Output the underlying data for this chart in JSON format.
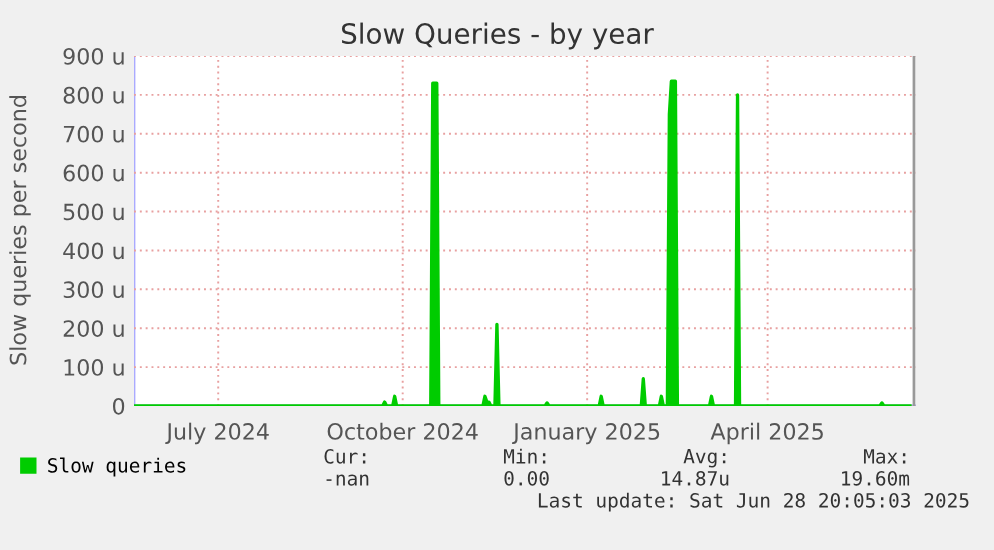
{
  "chart_data": {
    "type": "area",
    "title": "Slow Queries - by year",
    "ylabel": "Slow queries per second",
    "x": [
      "2024-06-04",
      "2024-10-06",
      "2024-10-07",
      "2024-10-08",
      "2024-10-11",
      "2024-10-12",
      "2024-10-13",
      "2024-10-30",
      "2024-10-31",
      "2024-11-02",
      "2024-11-03",
      "2024-11-25",
      "2024-11-26",
      "2024-11-27",
      "2024-11-28",
      "2024-11-29",
      "2024-12-01",
      "2024-12-02",
      "2024-12-03",
      "2024-12-26",
      "2024-12-27",
      "2024-12-28",
      "2025-01-22",
      "2025-01-23",
      "2025-01-24",
      "2025-02-12",
      "2025-02-13",
      "2025-02-14",
      "2025-02-21",
      "2025-02-22",
      "2025-02-23",
      "2025-02-25",
      "2025-02-26",
      "2025-02-27",
      "2025-03-01",
      "2025-03-02",
      "2025-03-18",
      "2025-03-19",
      "2025-03-20",
      "2025-03-31",
      "2025-04-01",
      "2025-04-02",
      "2025-06-11",
      "2025-06-12",
      "2025-06-13",
      "2025-06-26"
    ],
    "series": [
      {
        "name": "Slow queries",
        "color": "#00cc00",
        "values": [
          0,
          0,
          10,
          0,
          0,
          25,
          0,
          0,
          830,
          830,
          0,
          0,
          25,
          10,
          10,
          0,
          0,
          210,
          0,
          0,
          8,
          0,
          0,
          25,
          0,
          0,
          70,
          0,
          0,
          25,
          0,
          0,
          750,
          835,
          835,
          0,
          0,
          25,
          0,
          0,
          800,
          0,
          0,
          8,
          0,
          0
        ]
      }
    ],
    "xlim": [
      "2024-06-04",
      "2025-06-29"
    ],
    "xticks": [
      {
        "value": "2024-07-16",
        "label": "July 2024"
      },
      {
        "value": "2024-10-16",
        "label": "October 2024"
      },
      {
        "value": "2025-01-16",
        "label": "January 2025"
      },
      {
        "value": "2025-04-16",
        "label": "April 2025"
      }
    ],
    "ylim": [
      0,
      900
    ],
    "yticks": [
      0,
      {
        "value": 100,
        "label": "100 u"
      },
      {
        "value": 200,
        "label": "200 u"
      },
      {
        "value": 300,
        "label": "300 u"
      },
      {
        "value": 400,
        "label": "400 u"
      },
      {
        "value": 500,
        "label": "500 u"
      },
      {
        "value": 600,
        "label": "600 u"
      },
      {
        "value": 700,
        "label": "700 u"
      },
      {
        "value": 800,
        "label": "800 u"
      },
      {
        "value": 900,
        "label": "900 u"
      }
    ],
    "grid": true,
    "legend": "bottom left",
    "ref_lines": [
      {
        "axis": "x",
        "value": "2025-06-28",
        "color": "#999999"
      }
    ],
    "annotations": [
      "Cur:",
      "Min:",
      "Avg:",
      "Max:",
      "-nan",
      "0.00",
      "14.87u",
      "19.60m",
      "Last update: Sat Jun 28 20:05:03 2025"
    ]
  }
}
